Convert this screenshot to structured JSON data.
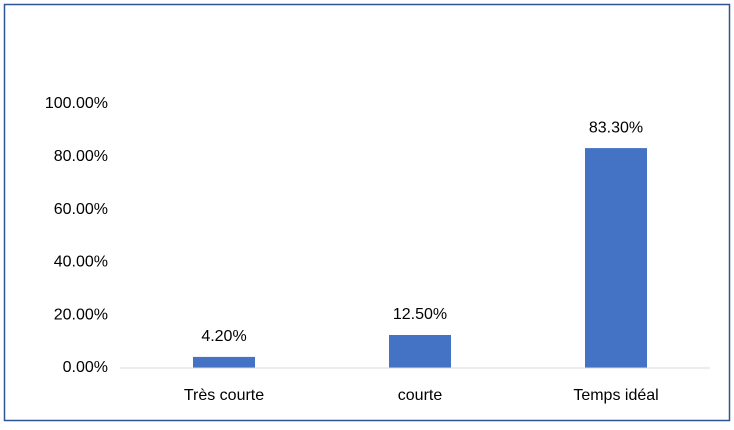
{
  "chart_data": {
    "type": "bar",
    "categories": [
      "Très courte",
      "courte",
      "Temps idéal"
    ],
    "values": [
      4.2,
      12.5,
      83.3
    ],
    "value_labels": [
      "4.20%",
      "12.50%",
      "83.30%"
    ],
    "color": "#4472c4",
    "ylim": [
      0,
      100
    ],
    "yticks": [
      {
        "value": 0,
        "label": "0.00%"
      },
      {
        "value": 20,
        "label": "20.00%"
      },
      {
        "value": 40,
        "label": "40.00%"
      },
      {
        "value": 60,
        "label": "60.00%"
      },
      {
        "value": 80,
        "label": "80.00%"
      },
      {
        "value": 100,
        "label": "100.00%"
      }
    ],
    "grid": false
  }
}
